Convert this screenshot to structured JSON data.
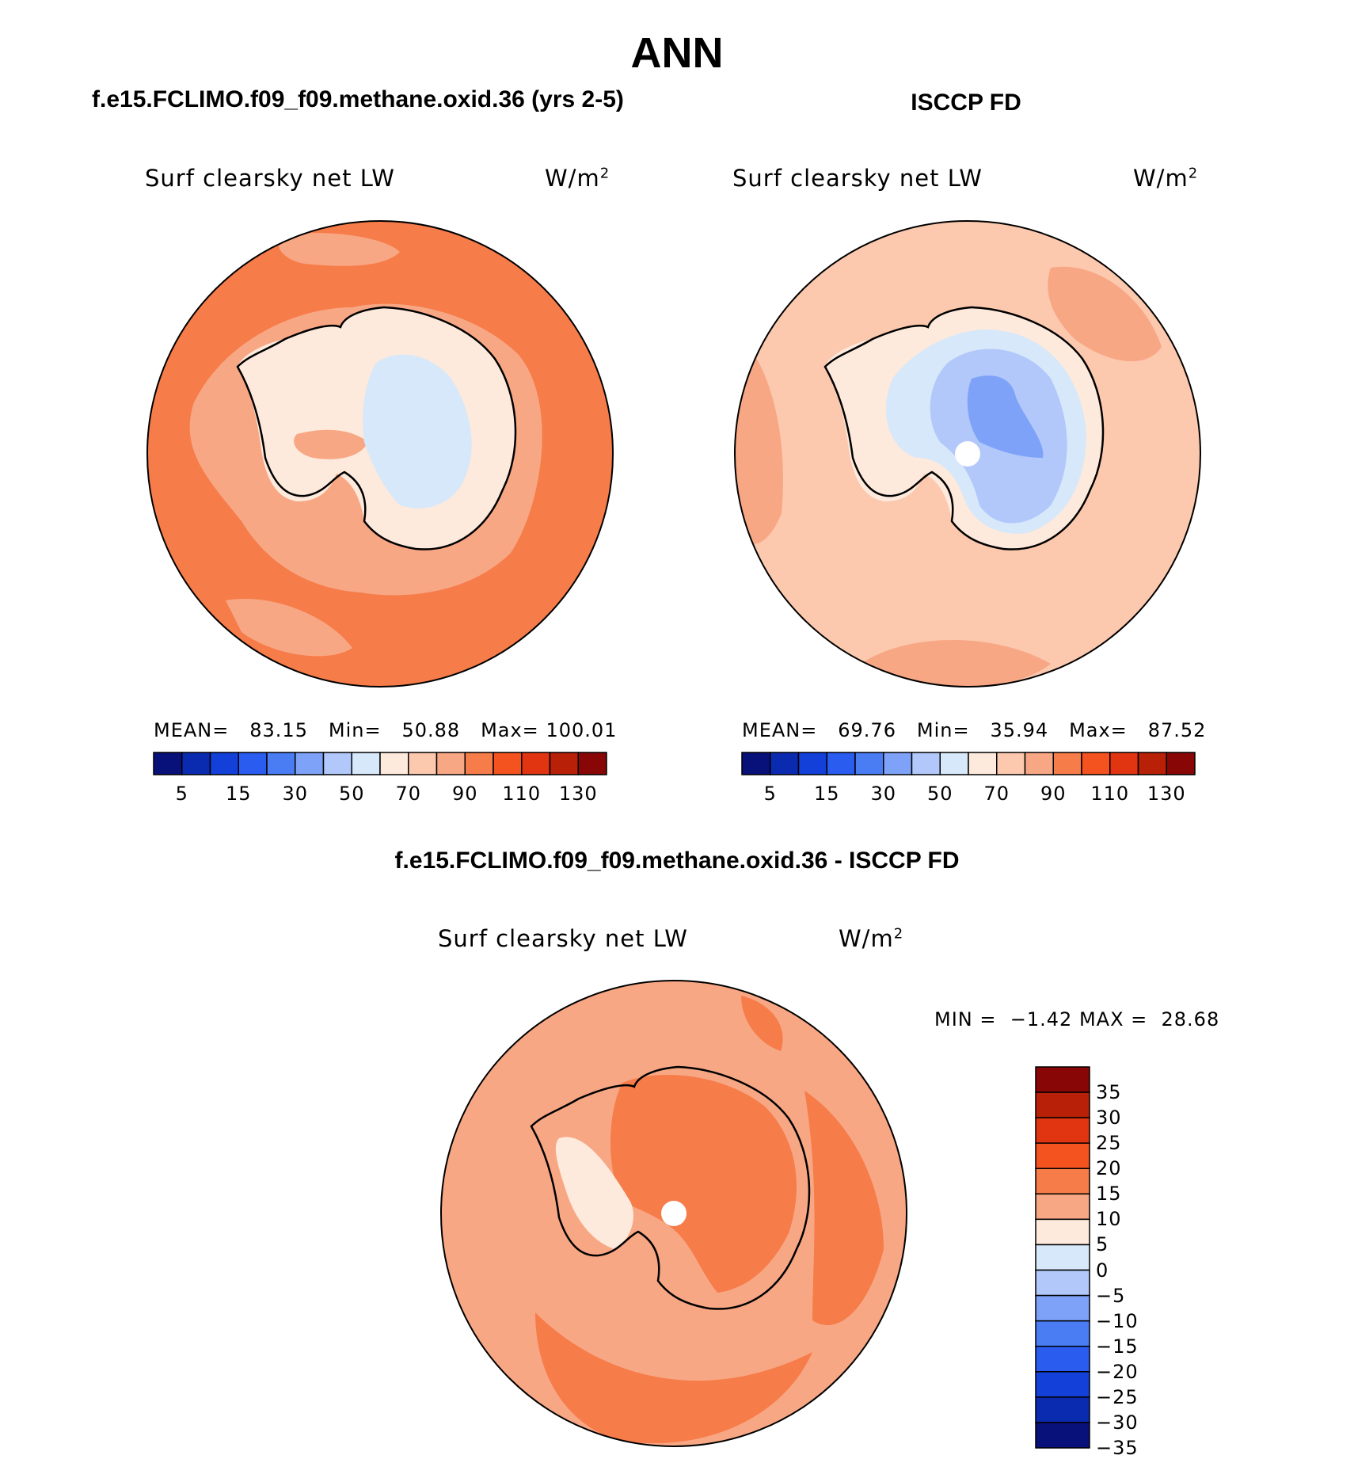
{
  "header": {
    "season": "ANN",
    "model_title": "f.e15.FCLIMO.f09_f09.methane.oxid.36 (yrs 2-5)",
    "obs_title": "ISCCP FD",
    "diff_title": "f.e15.FCLIMO.f09_f09.methane.oxid.36 - ISCCP FD"
  },
  "panels": {
    "model": {
      "variable": "Surf clearsky net LW",
      "units_base": "W/m",
      "units_exp": "2",
      "stats": {
        "mean_label": "MEAN=",
        "mean": "83.15",
        "min_label": "Min=",
        "min": "50.88",
        "max_label": "Max=",
        "max": "100.01"
      }
    },
    "obs": {
      "variable": "Surf clearsky net LW",
      "units_base": "W/m",
      "units_exp": "2",
      "stats": {
        "mean_label": "MEAN=",
        "mean": "69.76",
        "min_label": "Min=",
        "min": "35.94",
        "max_label": "Max=",
        "max": "87.52"
      }
    },
    "diff": {
      "variable": "Surf clearsky net LW",
      "units_base": "W/m",
      "units_exp": "2",
      "stats": {
        "min_label": "MIN =",
        "min": "−1.42",
        "max_label": "MAX =",
        "max": "28.68"
      }
    }
  },
  "colorbars": {
    "abs": {
      "colors": [
        "#08107a",
        "#0a2ab0",
        "#1240d8",
        "#2a5cf0",
        "#4a7cf4",
        "#7ea2f8",
        "#b2c8fa",
        "#d6e8fa",
        "#fdeadc",
        "#fcc8ae",
        "#f8a784",
        "#f67c4a",
        "#f4521f",
        "#e03510",
        "#b82008",
        "#880606"
      ],
      "labels": [
        "5",
        "15",
        "30",
        "50",
        "70",
        "90",
        "110",
        "130"
      ]
    },
    "diff": {
      "colors": [
        "#880606",
        "#b82008",
        "#e03510",
        "#f4521f",
        "#f67c4a",
        "#f8a784",
        "#fdeadc",
        "#d6e8fa",
        "#b2c8fa",
        "#7ea2f8",
        "#4a7cf4",
        "#2a5cf0",
        "#1240d8",
        "#0a2ab0",
        "#08107a"
      ],
      "labels": [
        "35",
        "30",
        "25",
        "20",
        "15",
        "10",
        "5",
        "0",
        "−5",
        "−10",
        "−15",
        "−20",
        "−25",
        "−30",
        "−35"
      ]
    }
  },
  "palette": {
    "ocean_model": "#f67c4a",
    "ocean_obs": "#fcc8ae",
    "ocean_diff": "#f8a784",
    "land_light": "#fdeadc",
    "land_ice_blue": "#d6e8fa",
    "land_mid_blue": "#b2c8fa",
    "land_deep_blue": "#7ea2f8",
    "salmon": "#f8a784",
    "pole_hole": "#ffffff",
    "coast": "#000000"
  }
}
